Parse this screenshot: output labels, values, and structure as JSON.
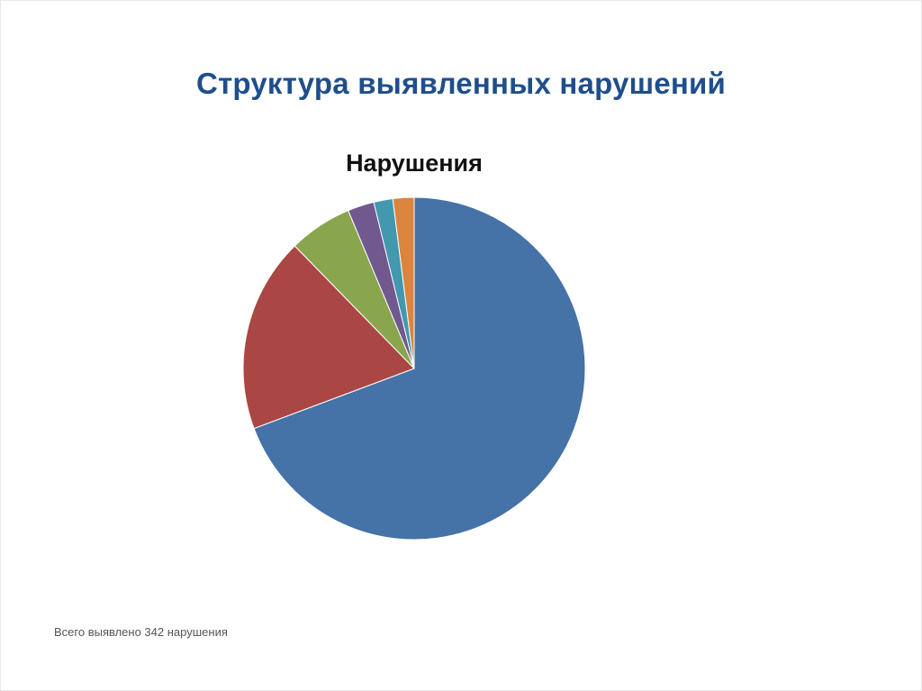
{
  "slide": {
    "title": "Структура выявленных нарушений",
    "footnote": "Всего выявлено 342 нарушения"
  },
  "chart_data": {
    "type": "pie",
    "title": "Нарушения",
    "start_angle_deg": 0,
    "direction": "clockwise",
    "legend": "none",
    "slices": [
      {
        "value": 69.3,
        "color": "#4572a7"
      },
      {
        "value": 18.4,
        "color": "#aa4643"
      },
      {
        "value": 6.0,
        "color": "#89a54e"
      },
      {
        "value": 2.5,
        "color": "#71588f"
      },
      {
        "value": 1.8,
        "color": "#4198af"
      },
      {
        "value": 2.0,
        "color": "#db843d"
      }
    ]
  }
}
